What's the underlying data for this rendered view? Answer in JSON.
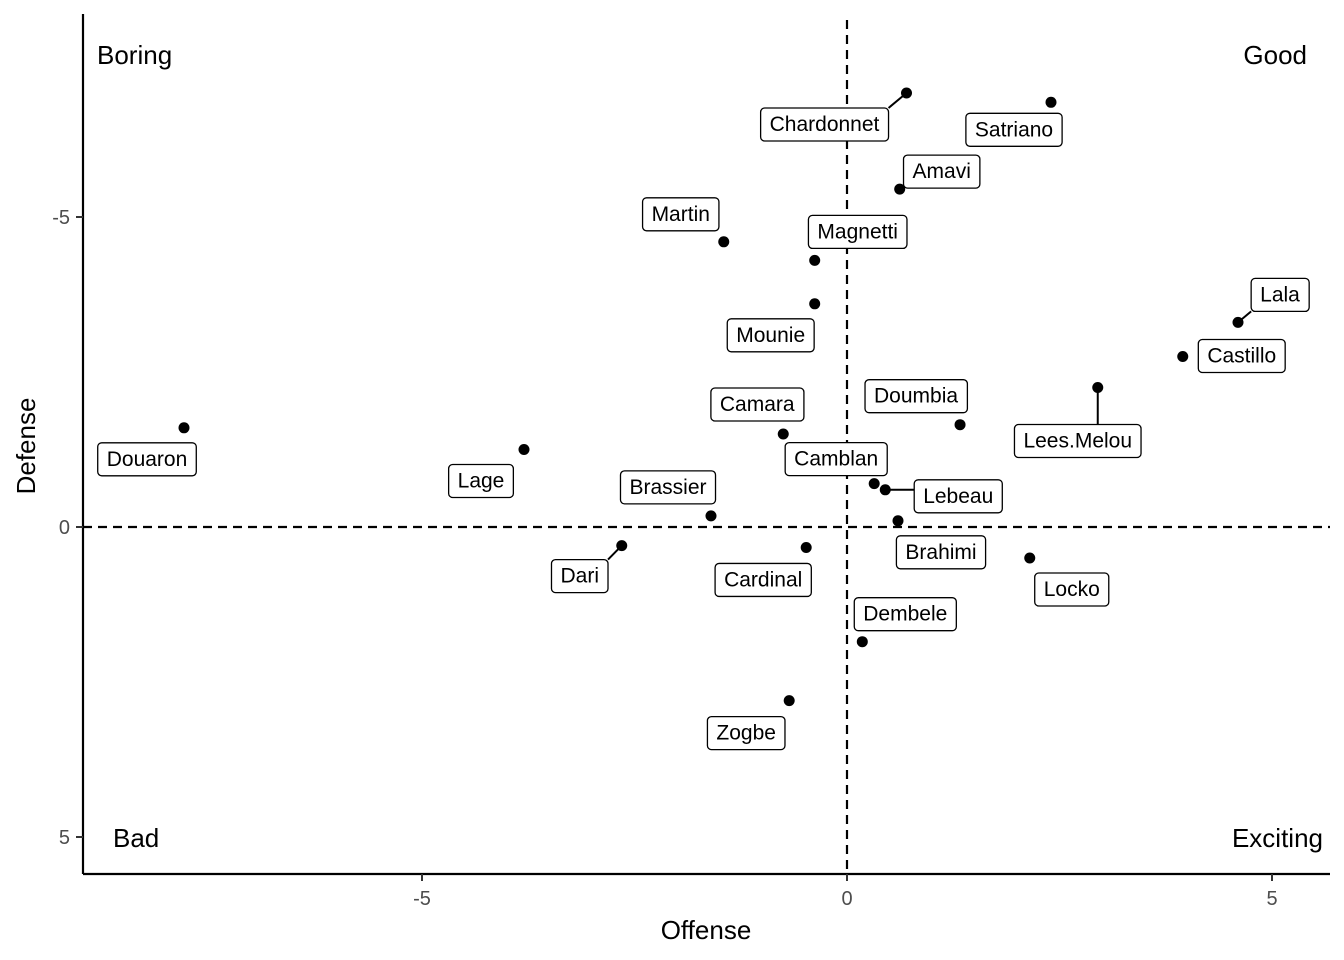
{
  "chart_data": {
    "type": "scatter",
    "xlabel": "Offense",
    "ylabel": "Defense",
    "xlim": [
      -9,
      5.6
    ],
    "ylim": [
      5.5,
      -8.3
    ],
    "y_reversed": true,
    "x_ticks": [
      -5,
      0,
      5
    ],
    "y_ticks": [
      -5,
      0,
      5
    ],
    "x_tick_labels": [
      "-5",
      "0",
      "5"
    ],
    "y_tick_labels": [
      "-5",
      "0",
      "5"
    ],
    "reference_lines": {
      "x": 0,
      "y": 0,
      "style": "dashed"
    },
    "grid": false,
    "quadrant_labels": {
      "top_left": "Boring",
      "top_right": "Good",
      "bottom_left": "Bad",
      "bottom_right": "Exciting"
    },
    "points": [
      {
        "name": "Chardonnet",
        "x": 0.7,
        "y": -7.0
      },
      {
        "name": "Satriano",
        "x": 2.4,
        "y": -6.85
      },
      {
        "name": "Amavi",
        "x": 0.62,
        "y": -5.45
      },
      {
        "name": "Martin",
        "x": -1.45,
        "y": -4.6
      },
      {
        "name": "Magnetti",
        "x": -0.38,
        "y": -4.3
      },
      {
        "name": "Mounie",
        "x": -0.38,
        "y": -3.6
      },
      {
        "name": "Lala",
        "x": 4.6,
        "y": -3.3
      },
      {
        "name": "Castillo",
        "x": 3.95,
        "y": -2.75
      },
      {
        "name": "Lees.Melou",
        "x": 2.95,
        "y": -2.25
      },
      {
        "name": "Douaron",
        "x": -7.8,
        "y": -1.6
      },
      {
        "name": "Doumbia",
        "x": 1.33,
        "y": -1.65
      },
      {
        "name": "Camara",
        "x": -0.75,
        "y": -1.5
      },
      {
        "name": "Lage",
        "x": -3.8,
        "y": -1.25
      },
      {
        "name": "Camblan",
        "x": 0.32,
        "y": -0.7
      },
      {
        "name": "Lebeau",
        "x": 0.45,
        "y": -0.6
      },
      {
        "name": "Brassier",
        "x": -1.6,
        "y": -0.18
      },
      {
        "name": "Brahimi",
        "x": 0.6,
        "y": -0.1
      },
      {
        "name": "Dari",
        "x": -2.65,
        "y": 0.3
      },
      {
        "name": "Cardinal",
        "x": -0.48,
        "y": 0.33
      },
      {
        "name": "Locko",
        "x": 2.15,
        "y": 0.5
      },
      {
        "name": "Dembele",
        "x": 0.18,
        "y": 1.85
      },
      {
        "name": "Zogbe",
        "x": -0.68,
        "y": 2.8
      }
    ]
  }
}
